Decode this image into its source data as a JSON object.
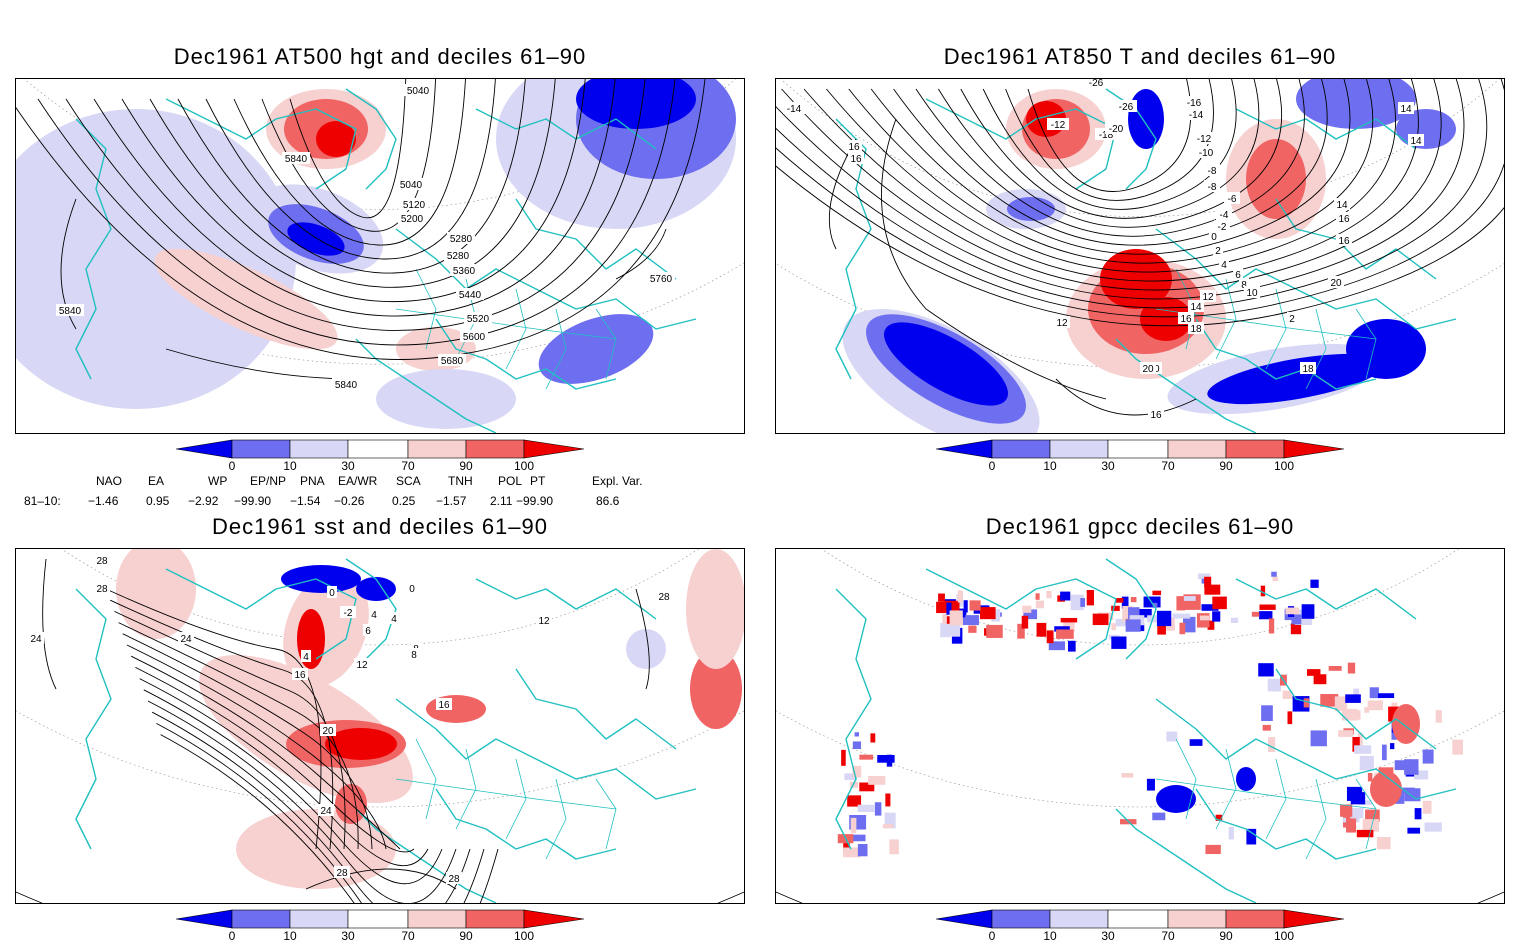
{
  "colors": {
    "dark_blue": "#0000ee",
    "mid_blue": "#6e6ef0",
    "light_blue": "#d8d8f6",
    "light_red": "#f7d0d0",
    "mid_red": "#f06464",
    "dark_red": "#ee0000",
    "coast": "#20c0c0",
    "contour": "#000000"
  },
  "colorbar_ticks": [
    "0",
    "10",
    "30",
    "70",
    "90",
    "100"
  ],
  "panels": [
    {
      "id": "at500",
      "title": "Dec1961 AT500 hgt and deciles 61–90",
      "contour_labels": [
        "5040",
        "5040",
        "5120",
        "5200",
        "5280",
        "5280",
        "5360",
        "5440",
        "5520",
        "5600",
        "5680",
        "5760",
        "5840",
        "5840",
        "5840"
      ]
    },
    {
      "id": "at850",
      "title": "Dec1961 AT850 T and deciles 61–90",
      "contour_labels": [
        "-26",
        "-26",
        "-12",
        "-18",
        "-20",
        "-16",
        "-14",
        "-12",
        "-10",
        "-8",
        "-8",
        "-6",
        "-4",
        "-2",
        "0",
        "2",
        "4",
        "6",
        "8",
        "10",
        "12",
        "14",
        "16",
        "18",
        "20",
        "16",
        "14",
        "14",
        "16",
        "16",
        "12",
        "18",
        "20",
        "16",
        "14",
        "-14",
        "16",
        "2",
        "20"
      ]
    },
    {
      "id": "sst",
      "title": "Dec1961 sst and deciles 61–90",
      "contour_labels": [
        "28",
        "28",
        "24",
        "24",
        "20",
        "16",
        "12",
        "8",
        "4",
        "0",
        "-2",
        "4",
        "4",
        "6",
        "0",
        "8",
        "16",
        "24",
        "28",
        "28",
        "28",
        "12"
      ]
    },
    {
      "id": "gpcc",
      "title": "Dec1961 gpcc deciles 61–90",
      "contour_labels": []
    }
  ],
  "indices": {
    "headers": [
      "NAO",
      "EA",
      "WP",
      "EP/NP",
      "PNA",
      "EA/WR",
      "SCA",
      "TNH",
      "POL",
      "PT",
      "Expl. Var."
    ],
    "row_label": "81–10:",
    "values": [
      "−1.46",
      "0.95",
      "−2.92",
      "−99.90",
      "−1.54",
      "−0.26",
      "0.25",
      "−1.57",
      "2.11",
      "−99.90",
      "86.6"
    ]
  }
}
